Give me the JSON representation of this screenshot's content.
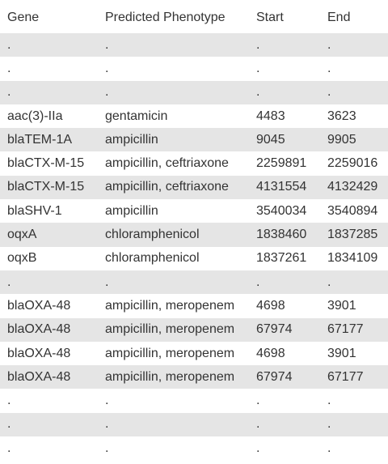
{
  "table": {
    "headers": [
      "Gene",
      "Predicted Phenotype",
      "Start",
      "End"
    ],
    "rows": [
      [
        ".",
        ".",
        ".",
        "."
      ],
      [
        ".",
        ".",
        ".",
        "."
      ],
      [
        ".",
        ".",
        ".",
        "."
      ],
      [
        "aac(3)-IIa",
        "gentamicin",
        "4483",
        "3623"
      ],
      [
        "blaTEM-1A",
        "ampicillin",
        "9045",
        "9905"
      ],
      [
        "blaCTX-M-15",
        "ampicillin, ceftriaxone",
        "2259891",
        "2259016"
      ],
      [
        "blaCTX-M-15",
        "ampicillin, ceftriaxone",
        "4131554",
        "4132429"
      ],
      [
        "blaSHV-1",
        "ampicillin",
        "3540034",
        "3540894"
      ],
      [
        "oqxA",
        "chloramphenicol",
        "1838460",
        "1837285"
      ],
      [
        "oqxB",
        "chloramphenicol",
        "1837261",
        "1834109"
      ],
      [
        ".",
        ".",
        ".",
        "."
      ],
      [
        "blaOXA-48",
        "ampicillin, meropenem",
        "4698",
        "3901"
      ],
      [
        "blaOXA-48",
        "ampicillin, meropenem",
        "67974",
        "67177"
      ],
      [
        "blaOXA-48",
        "ampicillin, meropenem",
        "4698",
        "3901"
      ],
      [
        "blaOXA-48",
        "ampicillin, meropenem",
        "67974",
        "67177"
      ],
      [
        ".",
        ".",
        ".",
        "."
      ],
      [
        ".",
        ".",
        ".",
        "."
      ],
      [
        ".",
        ".",
        ".",
        "."
      ]
    ]
  }
}
